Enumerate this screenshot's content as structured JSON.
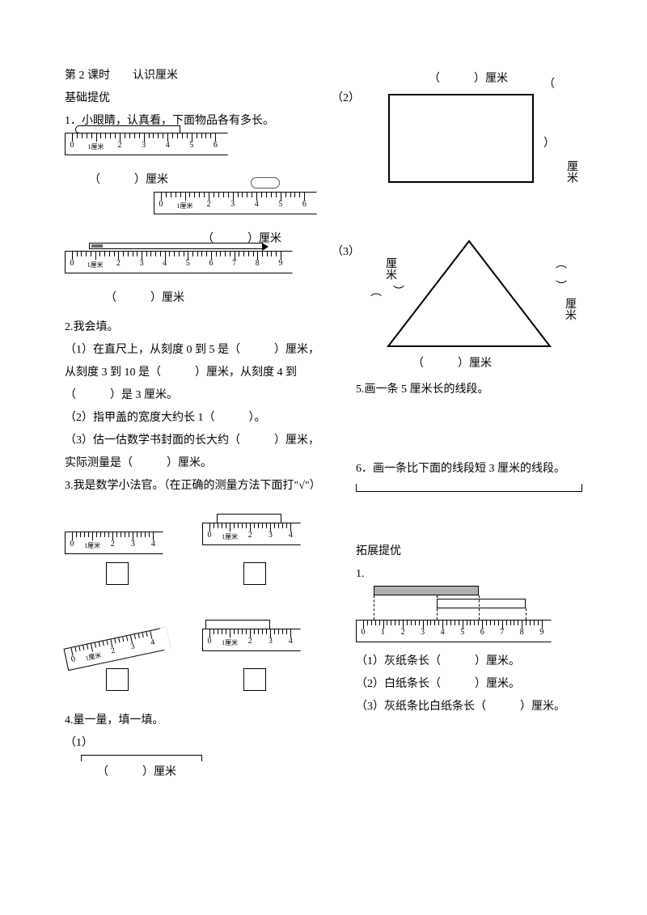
{
  "colors": {
    "bg": "#ffffff",
    "fg": "#000000",
    "gray_strip": "#b0b0b0"
  },
  "title_line": "第 2 课时　　认识厘米",
  "section_basic": "基础提优",
  "q1": {
    "prompt": "1．小眼睛，认真看，下面物品各有多长。",
    "unit_label": "（　　　）厘米",
    "ruler_unit": "1厘米",
    "items": [
      {
        "ticks": [
          "0",
          "1",
          "2",
          "3",
          "4",
          "5",
          "6"
        ],
        "object": "crayon"
      },
      {
        "ticks": [
          "0",
          "1",
          "2",
          "3",
          "4",
          "5",
          "6"
        ],
        "object": "paperclip"
      },
      {
        "ticks": [
          "0",
          "1",
          "2",
          "3",
          "4",
          "5",
          "6",
          "7",
          "8",
          "9"
        ],
        "object": "pencil"
      }
    ]
  },
  "q2": {
    "title": "2.我会填。",
    "items": [
      "（1）在直尺上，从刻度 0 到 5 是（　　　）厘米，从刻度 3 到 10 是（　　　）厘米，从刻度 4 到（　　　）是 3 厘米。",
      "（2）指甲盖的宽度大约长 1（　　　）。",
      "（3）估一估数学书封面的长大约（　　　）厘米，实际测量是（　　　）厘米。"
    ]
  },
  "q3": {
    "title": "3.我是数学小法官。（在正确的测量方法下面打\"√\"）",
    "ruler_ticks": [
      "0",
      "1",
      "2",
      "3",
      "4"
    ],
    "ruler_unit": "1厘米"
  },
  "q4": {
    "title": "4.量一量，填一填。",
    "sub1": "（1）",
    "unit": "（　　　）厘米",
    "sub2": "（2）",
    "unit2": "（　　　）厘米",
    "side_paren": "（　　　）厘米",
    "sub3": "（3）"
  },
  "q5": {
    "title": "5.画一条 5 厘米长的线段。"
  },
  "q6": {
    "title": "6．画一条比下面的线段短 3 厘米的线段。"
  },
  "section_ext": "拓展提优",
  "ext1": {
    "title": "1.",
    "ruler_ticks": [
      "0",
      "1",
      "2",
      "3",
      "4",
      "5",
      "6",
      "7",
      "8",
      "9"
    ],
    "lines": [
      "（1）灰纸条长（　　　）厘米。",
      "（2）白纸条长（　　　）厘米。",
      "（3）灰纸条比白纸条长（　　　）厘米。"
    ]
  },
  "cm_vert": "厘米"
}
